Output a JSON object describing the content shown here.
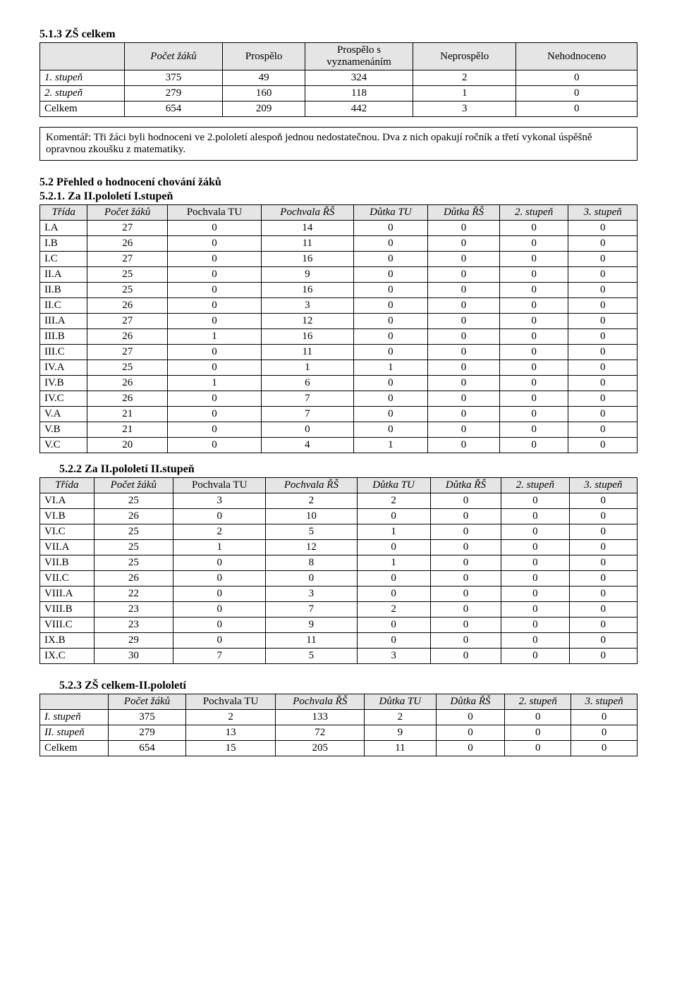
{
  "section513": {
    "title": "5.1.3  ZŠ celkem",
    "columns": [
      "",
      "Počet žáků",
      "Prospělo",
      "Prospělo s vyznamenáním",
      "Neprospělo",
      "Nehodnoceno"
    ],
    "rows": [
      {
        "label": "1. stupeň",
        "values": [
          "375",
          "49",
          "324",
          "2",
          "0"
        ],
        "italic": true
      },
      {
        "label": "2. stupeň",
        "values": [
          "279",
          "160",
          "118",
          "1",
          "0"
        ],
        "italic": true
      },
      {
        "label": "Celkem",
        "values": [
          "654",
          "209",
          "442",
          "3",
          "0"
        ],
        "italic": false
      }
    ]
  },
  "commentary": "Komentář: Tři žáci byli hodnoceni ve 2.pololetí alespoň jednou nedostatečnou. Dva z nich opakují ročník a třetí vykonal úspěšně opravnou zkoušku z matematiky.",
  "section52_title": "5.2 Přehled o hodnocení chování žáků",
  "section521": {
    "title": "5.2.1. Za II.pololetí I.stupeň",
    "columns": [
      "Třída",
      "Počet žáků",
      "Pochvala TU",
      "Pochvala ŘŠ",
      "Důtka TU",
      "Důtka ŘŠ",
      "2. stupeň",
      "3. stupeň"
    ],
    "rows": [
      {
        "label": "I.A",
        "values": [
          "27",
          "0",
          "14",
          "0",
          "0",
          "0",
          "0"
        ]
      },
      {
        "label": "I.B",
        "values": [
          "26",
          "0",
          "11",
          "0",
          "0",
          "0",
          "0"
        ]
      },
      {
        "label": "I.C",
        "values": [
          "27",
          "0",
          "16",
          "0",
          "0",
          "0",
          "0"
        ]
      },
      {
        "label": "II.A",
        "values": [
          "25",
          "0",
          "9",
          "0",
          "0",
          "0",
          "0"
        ]
      },
      {
        "label": "II.B",
        "values": [
          "25",
          "0",
          "16",
          "0",
          "0",
          "0",
          "0"
        ]
      },
      {
        "label": "II.C",
        "values": [
          "26",
          "0",
          "3",
          "0",
          "0",
          "0",
          "0"
        ]
      },
      {
        "label": "III.A",
        "values": [
          "27",
          "0",
          "12",
          "0",
          "0",
          "0",
          "0"
        ]
      },
      {
        "label": "III.B",
        "values": [
          "26",
          "1",
          "16",
          "0",
          "0",
          "0",
          "0"
        ]
      },
      {
        "label": "III.C",
        "values": [
          "27",
          "0",
          "11",
          "0",
          "0",
          "0",
          "0"
        ]
      },
      {
        "label": "IV.A",
        "values": [
          "25",
          "0",
          "1",
          "1",
          "0",
          "0",
          "0"
        ]
      },
      {
        "label": "IV.B",
        "values": [
          "26",
          "1",
          "6",
          "0",
          "0",
          "0",
          "0"
        ]
      },
      {
        "label": "IV.C",
        "values": [
          "26",
          "0",
          "7",
          "0",
          "0",
          "0",
          "0"
        ]
      },
      {
        "label": "V.A",
        "values": [
          "21",
          "0",
          "7",
          "0",
          "0",
          "0",
          "0"
        ]
      },
      {
        "label": "V.B",
        "values": [
          "21",
          "0",
          "0",
          "0",
          "0",
          "0",
          "0"
        ]
      },
      {
        "label": "V.C",
        "values": [
          "20",
          "0",
          "4",
          "1",
          "0",
          "0",
          "0"
        ]
      }
    ]
  },
  "section522": {
    "title": "5.2.2   Za II.pololetí II.stupeň",
    "columns": [
      "Třída",
      "Počet žáků",
      "Pochvala TU",
      "Pochvala ŘŠ",
      "Důtka TU",
      "Důtka ŘŠ",
      "2. stupeň",
      "3. stupeň"
    ],
    "rows": [
      {
        "label": "VI.A",
        "values": [
          "25",
          "3",
          "2",
          "2",
          "0",
          "0",
          "0"
        ]
      },
      {
        "label": "VI.B",
        "values": [
          "26",
          "0",
          "10",
          "0",
          "0",
          "0",
          "0"
        ]
      },
      {
        "label": "VI.C",
        "values": [
          "25",
          "2",
          "5",
          "1",
          "0",
          "0",
          "0"
        ]
      },
      {
        "label": "VII.A",
        "values": [
          "25",
          "1",
          "12",
          "0",
          "0",
          "0",
          "0"
        ]
      },
      {
        "label": "VII.B",
        "values": [
          "25",
          "0",
          "8",
          "1",
          "0",
          "0",
          "0"
        ]
      },
      {
        "label": "VII.C",
        "values": [
          "26",
          "0",
          "0",
          "0",
          "0",
          "0",
          "0"
        ]
      },
      {
        "label": "VIII.A",
        "values": [
          "22",
          "0",
          "3",
          "0",
          "0",
          "0",
          "0"
        ]
      },
      {
        "label": "VIII.B",
        "values": [
          "23",
          "0",
          "7",
          "2",
          "0",
          "0",
          "0"
        ]
      },
      {
        "label": "VIII.C",
        "values": [
          "23",
          "0",
          "9",
          "0",
          "0",
          "0",
          "0"
        ]
      },
      {
        "label": "IX.B",
        "values": [
          "29",
          "0",
          "11",
          "0",
          "0",
          "0",
          "0"
        ]
      },
      {
        "label": "IX.C",
        "values": [
          "30",
          "7",
          "5",
          "3",
          "0",
          "0",
          "0"
        ]
      }
    ]
  },
  "section523": {
    "title": "5.2.3  ZŠ celkem-II.pololetí",
    "columns": [
      "",
      "Počet žáků",
      "Pochvala TU",
      "Pochvala ŘŠ",
      "Důtka TU",
      "Důtka ŘŠ",
      "2. stupeň",
      "3. stupeň"
    ],
    "rows": [
      {
        "label": "I. stupeň",
        "values": [
          "375",
          "2",
          "133",
          "2",
          "0",
          "0",
          "0"
        ],
        "italic": true
      },
      {
        "label": "II. stupeň",
        "values": [
          "279",
          "13",
          "72",
          "9",
          "0",
          "0",
          "0"
        ],
        "italic": true
      },
      {
        "label": "Celkem",
        "values": [
          "654",
          "15",
          "205",
          "11",
          "0",
          "0",
          "0"
        ],
        "italic": false
      }
    ]
  }
}
